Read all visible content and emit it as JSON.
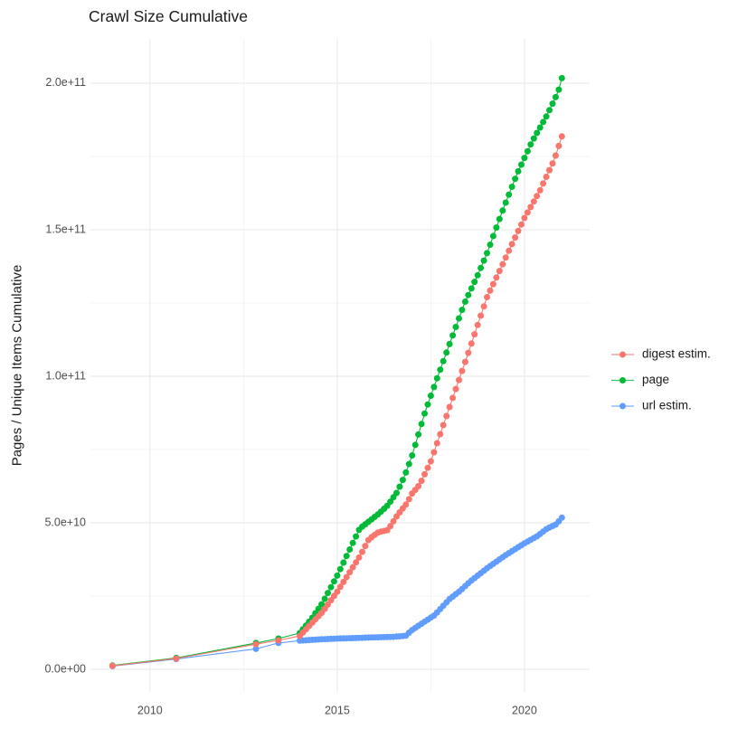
{
  "figure": {
    "title": "Crawl Size Cumulative",
    "y_axis_title": "Pages / Unique Items Cumulative",
    "x_axis_title": ""
  },
  "chart_data": {
    "type": "scatter",
    "title": "Crawl Size Cumulative",
    "xlabel": "",
    "ylabel": "Pages / Unique Items Cumulative",
    "value_unit": "pages / unique items, values expressed in billions (1e9)",
    "x_axis_unit": "year",
    "grid": true,
    "legend_position": "right",
    "xlim": [
      2008.41,
      2021.74
    ],
    "ylim_e9": [
      -7.7,
      215.1
    ],
    "x_ticks": [
      {
        "label": "2010",
        "year": 2010
      },
      {
        "label": "2015",
        "year": 2015
      },
      {
        "label": "2020",
        "year": 2020
      }
    ],
    "x_minor_gridlines": [
      2012.5,
      2017.5
    ],
    "y_ticks": [
      {
        "label": "0.0e+00",
        "value_e9": 0
      },
      {
        "label": "5.0e+10",
        "value_e9": 50
      },
      {
        "label": "1.0e+11",
        "value_e9": 100
      },
      {
        "label": "1.5e+11",
        "value_e9": 150
      },
      {
        "label": "2.0e+11",
        "value_e9": 200
      }
    ],
    "y_minor_gridlines_e9": [
      25,
      75,
      125,
      175
    ],
    "legend": [
      {
        "label": "digest estim.",
        "color": "#F8766D"
      },
      {
        "label": "page",
        "color": "#00BA38"
      },
      {
        "label": "url estim.",
        "color": "#619CFF"
      }
    ],
    "draw_order": [
      "url estim.",
      "page",
      "digest estim."
    ],
    "cadence_note": "sparse early crawls as single points; roughly monthly points from 2014 onward (interpolated between anchors)",
    "series": [
      {
        "name": "digest estim.",
        "color": "#F8766D",
        "sparse_points": [
          [
            2009.0,
            1.2
          ],
          [
            2010.7,
            3.7
          ],
          [
            2012.83,
            8.6
          ],
          [
            2013.43,
            9.9
          ]
        ],
        "dense": {
          "start": 2014.0,
          "end": 2021.08,
          "cadence_years": 0.08333,
          "anchors": [
            [
              2014.0,
              11.4
            ],
            [
              2014.3,
              15.5
            ],
            [
              2014.6,
              19.5
            ],
            [
              2015.0,
              26.5
            ],
            [
              2015.3,
              32.5
            ],
            [
              2015.6,
              38.5
            ],
            [
              2015.85,
              44.5
            ],
            [
              2016.1,
              46.8
            ],
            [
              2016.35,
              47.5
            ],
            [
              2016.6,
              52.5
            ],
            [
              2016.85,
              56.5
            ],
            [
              2017.0,
              60
            ],
            [
              2017.2,
              63
            ],
            [
              2017.5,
              71
            ],
            [
              2018.0,
              89.5
            ],
            [
              2018.5,
              108
            ],
            [
              2019.0,
              127
            ],
            [
              2019.3,
              135
            ],
            [
              2019.7,
              146
            ],
            [
              2020.0,
              154
            ],
            [
              2020.4,
              163
            ],
            [
              2020.8,
              174
            ],
            [
              2021.08,
              185
            ]
          ]
        }
      },
      {
        "name": "page",
        "color": "#00BA38",
        "sparse_points": [
          [
            2009.0,
            1.3
          ],
          [
            2010.7,
            3.9
          ],
          [
            2012.83,
            9.0
          ],
          [
            2013.43,
            10.5
          ]
        ],
        "dense": {
          "start": 2014.0,
          "end": 2021.08,
          "cadence_years": 0.08333,
          "anchors": [
            [
              2014.0,
              12.4
            ],
            [
              2014.3,
              17
            ],
            [
              2014.6,
              22.5
            ],
            [
              2015.0,
              32
            ],
            [
              2015.3,
              40
            ],
            [
              2015.6,
              48
            ],
            [
              2015.85,
              50.5
            ],
            [
              2016.1,
              53
            ],
            [
              2016.35,
              56
            ],
            [
              2016.6,
              60.5
            ],
            [
              2016.8,
              66
            ],
            [
              2017.0,
              73
            ],
            [
              2017.35,
              88
            ],
            [
              2017.7,
              100.5
            ],
            [
              2018.0,
              111
            ],
            [
              2018.4,
              125
            ],
            [
              2018.77,
              135
            ],
            [
              2019.0,
              142
            ],
            [
              2019.4,
              156
            ],
            [
              2019.8,
              169
            ],
            [
              2020.2,
              180
            ],
            [
              2020.6,
              189
            ],
            [
              2020.9,
              197
            ],
            [
              2021.08,
              205.5
            ]
          ]
        }
      },
      {
        "name": "url estim.",
        "color": "#619CFF",
        "sparse_points": [
          [
            2009.0,
            1.1
          ],
          [
            2010.7,
            3.5
          ],
          [
            2012.83,
            7.0
          ],
          [
            2013.43,
            9.0
          ]
        ],
        "dense": {
          "start": 2014.0,
          "end": 2021.08,
          "cadence_years": 0.08333,
          "anchors": [
            [
              2014.0,
              9.8
            ],
            [
              2014.5,
              10.2
            ],
            [
              2015.0,
              10.5
            ],
            [
              2015.5,
              10.7
            ],
            [
              2016.0,
              10.9
            ],
            [
              2016.5,
              11.1
            ],
            [
              2016.85,
              11.5
            ],
            [
              2016.95,
              13
            ],
            [
              2017.3,
              16
            ],
            [
              2017.6,
              18.5
            ],
            [
              2018.0,
              24
            ],
            [
              2018.3,
              27
            ],
            [
              2018.55,
              30
            ],
            [
              2019.0,
              34.5
            ],
            [
              2019.5,
              39
            ],
            [
              2020.0,
              43
            ],
            [
              2020.35,
              45.5
            ],
            [
              2020.6,
              48
            ],
            [
              2020.85,
              49.5
            ],
            [
              2021.08,
              53
            ]
          ]
        }
      }
    ],
    "style": {
      "major_grid_color": "#EBEBEB",
      "minor_grid_color": "#F3F3F3",
      "tick_label_color": "#4D4D4D",
      "title_color": "#1a1a1a",
      "background": "#FFFFFF",
      "point_radius": 3.5,
      "line_width": 1.1
    }
  }
}
